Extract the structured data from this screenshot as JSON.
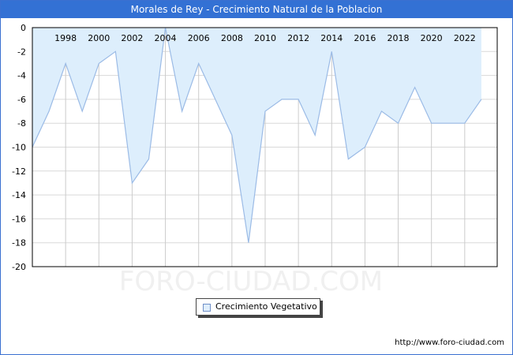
{
  "header": {
    "title": "Morales de Rey - Crecimiento Natural de la Poblacion"
  },
  "legend": {
    "label": "Crecimiento Vegetativo",
    "icon": "square-swatch-icon"
  },
  "footer": {
    "url": "http://www.foro-ciudad.com"
  },
  "watermark": "FORO-CIUDAD.COM",
  "colors": {
    "title_bg": "#3371d4",
    "fill": "#ddeefc",
    "line": "#9bbbe6",
    "grid": "#d9d9d9"
  },
  "chart_data": {
    "type": "area",
    "title": "Morales de Rey - Crecimiento Natural de la Poblacion",
    "xlabel": "",
    "ylabel": "",
    "x": [
      1996,
      1997,
      1998,
      1999,
      2000,
      2001,
      2002,
      2003,
      2004,
      2005,
      2006,
      2007,
      2008,
      2009,
      2010,
      2011,
      2012,
      2013,
      2014,
      2015,
      2016,
      2017,
      2018,
      2019,
      2020,
      2021,
      2022,
      2023
    ],
    "series": [
      {
        "name": "Crecimiento Vegetativo",
        "values": [
          -10,
          -7,
          -3,
          -7,
          -3,
          -2,
          -13,
          -11,
          0,
          -7,
          -3,
          -6,
          -9,
          -18,
          -7,
          -6,
          -6,
          -9,
          -2,
          -11,
          -10,
          -7,
          -8,
          -5,
          -8,
          -8,
          -8,
          -6
        ]
      }
    ],
    "ylim": [
      -20,
      0
    ],
    "yticks": [
      0,
      -2,
      -4,
      -6,
      -8,
      -10,
      -12,
      -14,
      -16,
      -18,
      -20
    ],
    "xtick_labels": [
      "1998",
      "2000",
      "2002",
      "2004",
      "2006",
      "2008",
      "2010",
      "2012",
      "2014",
      "2016",
      "2018",
      "2020",
      "2022"
    ],
    "grid": true,
    "legend_position": "bottom-center"
  }
}
